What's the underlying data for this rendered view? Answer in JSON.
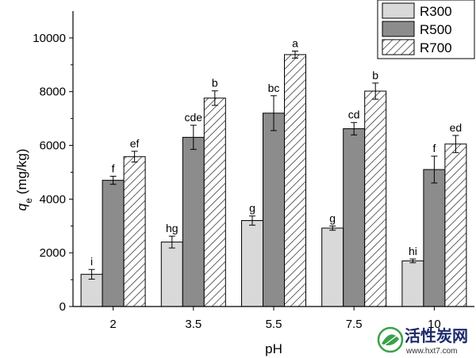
{
  "chart_data": {
    "type": "bar",
    "categories": [
      "2",
      "3.5",
      "5.5",
      "7.5",
      "10"
    ],
    "series": [
      {
        "name": "R300",
        "values": [
          1200,
          2400,
          3200,
          2920,
          1700
        ],
        "errors": [
          180,
          220,
          170,
          80,
          70
        ],
        "labels": [
          "i",
          "hg",
          "g",
          "g",
          "hi"
        ],
        "fill": "light-gray"
      },
      {
        "name": "R500",
        "values": [
          4700,
          6300,
          7200,
          6620,
          5100
        ],
        "errors": [
          150,
          450,
          650,
          230,
          500
        ],
        "labels": [
          "f",
          "cde",
          "bc",
          "cd",
          "f"
        ],
        "fill": "dark-gray"
      },
      {
        "name": "R700",
        "values": [
          5580,
          7760,
          9380,
          8020,
          6050
        ],
        "errors": [
          200,
          270,
          130,
          300,
          320
        ],
        "labels": [
          "ef",
          "b",
          "a",
          "b",
          "ed"
        ],
        "fill": "diagonal-hatch"
      }
    ],
    "xlabel": "pH",
    "ylabel": {
      "q": "q",
      "subscript": "e",
      "unit": " (mg/kg)"
    },
    "ylim": [
      0,
      11000
    ],
    "yticks": [
      "0",
      "2000",
      "4000",
      "6000",
      "8000",
      "10000"
    ],
    "grid": false,
    "legend_position": "top-right"
  },
  "colors": {
    "r300_fill": "#d9d9d9",
    "r500_fill": "#8c8c8c",
    "r700_fill": "#ffffff",
    "hatch_line": "#3a3a3a",
    "outline": "#000000"
  },
  "watermark": {
    "title": "活性炭网",
    "url": "www.hxt7.com",
    "icon": "leaf-logo-icon"
  }
}
